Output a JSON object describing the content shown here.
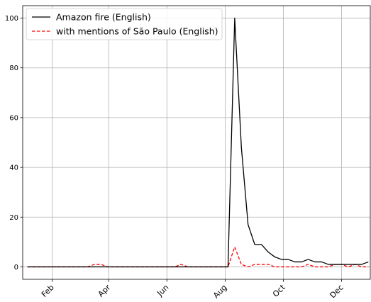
{
  "chart_data": {
    "type": "line",
    "title": "",
    "xlabel": "",
    "ylabel": "",
    "x": [
      "2019-01-06",
      "2019-01-13",
      "2019-01-20",
      "2019-01-27",
      "2019-02-03",
      "2019-02-10",
      "2019-02-17",
      "2019-02-24",
      "2019-03-03",
      "2019-03-10",
      "2019-03-17",
      "2019-03-24",
      "2019-03-31",
      "2019-04-07",
      "2019-04-14",
      "2019-04-21",
      "2019-04-28",
      "2019-05-05",
      "2019-05-12",
      "2019-05-19",
      "2019-05-26",
      "2019-06-02",
      "2019-06-09",
      "2019-06-16",
      "2019-06-23",
      "2019-06-30",
      "2019-07-07",
      "2019-07-14",
      "2019-07-21",
      "2019-07-28",
      "2019-08-04",
      "2019-08-11",
      "2019-08-18",
      "2019-08-25",
      "2019-09-01",
      "2019-09-08",
      "2019-09-15",
      "2019-09-22",
      "2019-09-29",
      "2019-10-06",
      "2019-10-13",
      "2019-10-20",
      "2019-10-27",
      "2019-11-03",
      "2019-11-10",
      "2019-11-17",
      "2019-11-24",
      "2019-12-01",
      "2019-12-08",
      "2019-12-15",
      "2019-12-22",
      "2019-12-29"
    ],
    "series": [
      {
        "name": "Amazon fire (English)",
        "color": "#000000",
        "style": "solid",
        "values": [
          0,
          0,
          0,
          0,
          0,
          0,
          0,
          0,
          0,
          0,
          0,
          0,
          0,
          0,
          0,
          0,
          0,
          0,
          0,
          0,
          0,
          0,
          0,
          0,
          0,
          0,
          0,
          0,
          0,
          0,
          0,
          100,
          48,
          17,
          9,
          9,
          6,
          4,
          3,
          3,
          2,
          2,
          3,
          2,
          2,
          1,
          1,
          1,
          1,
          1,
          1,
          2
        ]
      },
      {
        "name": "with mentions of São Paulo (English)",
        "color": "#ff0000",
        "style": "dashed",
        "values": [
          0,
          0,
          0,
          0,
          0,
          0,
          0,
          0,
          0,
          0,
          1,
          1,
          0,
          0,
          0,
          0,
          0,
          0,
          0,
          0,
          0,
          0,
          0,
          1,
          0,
          0,
          0,
          0,
          0,
          0,
          0,
          8,
          1,
          0,
          1,
          1,
          1,
          0,
          0,
          0,
          0,
          0,
          1,
          0,
          0,
          0,
          1,
          1,
          0,
          1,
          0,
          0
        ]
      }
    ],
    "x_ticks": [
      "Feb",
      "Apr",
      "Jun",
      "Aug",
      "Oct",
      "Dec"
    ],
    "y_ticks": [
      "0",
      "20",
      "40",
      "60",
      "80",
      "100"
    ],
    "ylim": [
      -5,
      105
    ],
    "xlim": [
      "2019-01-01",
      "2019-12-31"
    ],
    "grid": true,
    "legend_position": "top-left"
  }
}
